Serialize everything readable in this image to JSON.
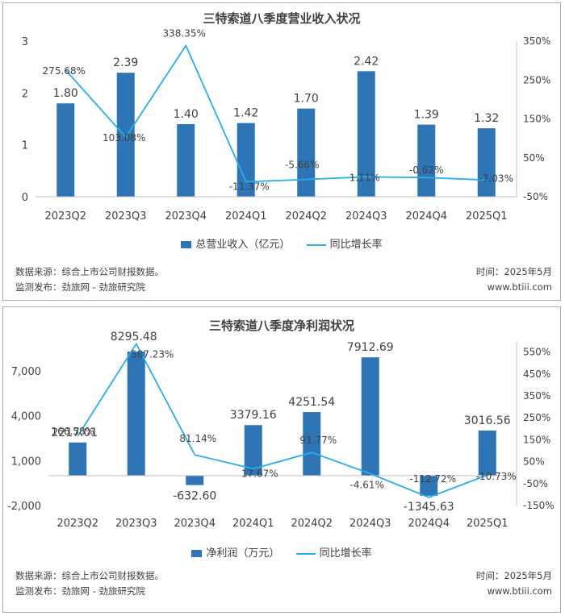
{
  "colors": {
    "bar": "#2e75b6",
    "line": "#27aee8",
    "axis": "#bfbfbf",
    "text": "#404040"
  },
  "chart_data": [
    {
      "type": "bar",
      "title": "三特索道八季度营业收入状况",
      "categories": [
        "2023Q2",
        "2023Q3",
        "2023Q4",
        "2024Q1",
        "2024Q2",
        "2024Q3",
        "2024Q4",
        "2025Q1"
      ],
      "series": [
        {
          "name": "总营业收入（亿元）",
          "type": "bar",
          "axis": "left",
          "values": [
            1.8,
            2.39,
            1.4,
            1.42,
            1.7,
            2.42,
            1.39,
            1.32
          ],
          "labels": [
            "1.80",
            "2.39",
            "1.40",
            "1.42",
            "1.70",
            "2.42",
            "1.39",
            "1.32"
          ]
        },
        {
          "name": "同比增长率",
          "type": "line",
          "axis": "right",
          "values": [
            275.68,
            103.08,
            338.35,
            -11.37,
            -5.66,
            1.11,
            -0.62,
            -7.03
          ],
          "labels": [
            "275.68%",
            "103.08%",
            "338.35%",
            "-11.37%",
            "-5.66%",
            "1.11%",
            "-0.62%",
            "-7.03%"
          ]
        }
      ],
      "y_left": {
        "min": 0,
        "max": 3,
        "ticks": [
          "0",
          "1",
          "2",
          "3"
        ],
        "tick_values": [
          0,
          1,
          2,
          3
        ]
      },
      "y_right": {
        "min": -50,
        "max": 350,
        "ticks": [
          "-50%",
          "50%",
          "150%",
          "250%",
          "350%"
        ],
        "tick_values": [
          -50,
          50,
          150,
          250,
          350
        ]
      },
      "legend_position": "bottom",
      "grid": false,
      "source": "数据来源：综合上市公司财报数据。",
      "publisher": "监测发布：劲旅网 - 劲旅研究院",
      "time": "时间：2025年5月",
      "site": "www.btiii.com"
    },
    {
      "type": "bar",
      "title": "三特索道八季度净利润状况",
      "categories": [
        "2023Q2",
        "2023Q3",
        "2023Q4",
        "2024Q1",
        "2024Q2",
        "2024Q3",
        "2024Q4",
        "2025Q1"
      ],
      "series": [
        {
          "name": "净利润（万元）",
          "type": "bar",
          "axis": "left",
          "values": [
            2217.01,
            8295.48,
            -632.6,
            3379.16,
            4251.54,
            7912.69,
            -1345.63,
            3016.56
          ],
          "labels": [
            "2217.01",
            "8295.48",
            "-632.60",
            "3379.16",
            "4251.54",
            "7912.69",
            "-1345.63",
            "3016.56"
          ]
        },
        {
          "name": "同比增长率",
          "type": "line",
          "axis": "right",
          "values": [
            166.58,
            587.23,
            81.14,
            17.67,
            91.77,
            -4.61,
            -112.72,
            -10.73
          ],
          "labels": [
            "166.58%",
            "587.23%",
            "81.14%",
            "17.67%",
            "91.77%",
            "-4.61%",
            "-112.72%",
            "-10.73%"
          ]
        }
      ],
      "y_left": {
        "min": -2000,
        "max": 9000,
        "ticks": [
          "-2,000",
          "1,000",
          "4,000",
          "7,000"
        ],
        "tick_values": [
          -2000,
          1000,
          4000,
          7000
        ]
      },
      "y_right": {
        "min": -150,
        "max": 600,
        "ticks": [
          "-150%",
          "-50%",
          "50%",
          "150%",
          "250%",
          "350%",
          "450%",
          "550%"
        ],
        "tick_values": [
          -150,
          -50,
          50,
          150,
          250,
          350,
          450,
          550
        ]
      },
      "legend_position": "bottom",
      "grid": false,
      "source": "数据来源：综合上市公司财报数据。",
      "publisher": "监测发布：劲旅网 - 劲旅研究院",
      "time": "时间：2025年5月",
      "site": "www.btiii.com"
    }
  ]
}
